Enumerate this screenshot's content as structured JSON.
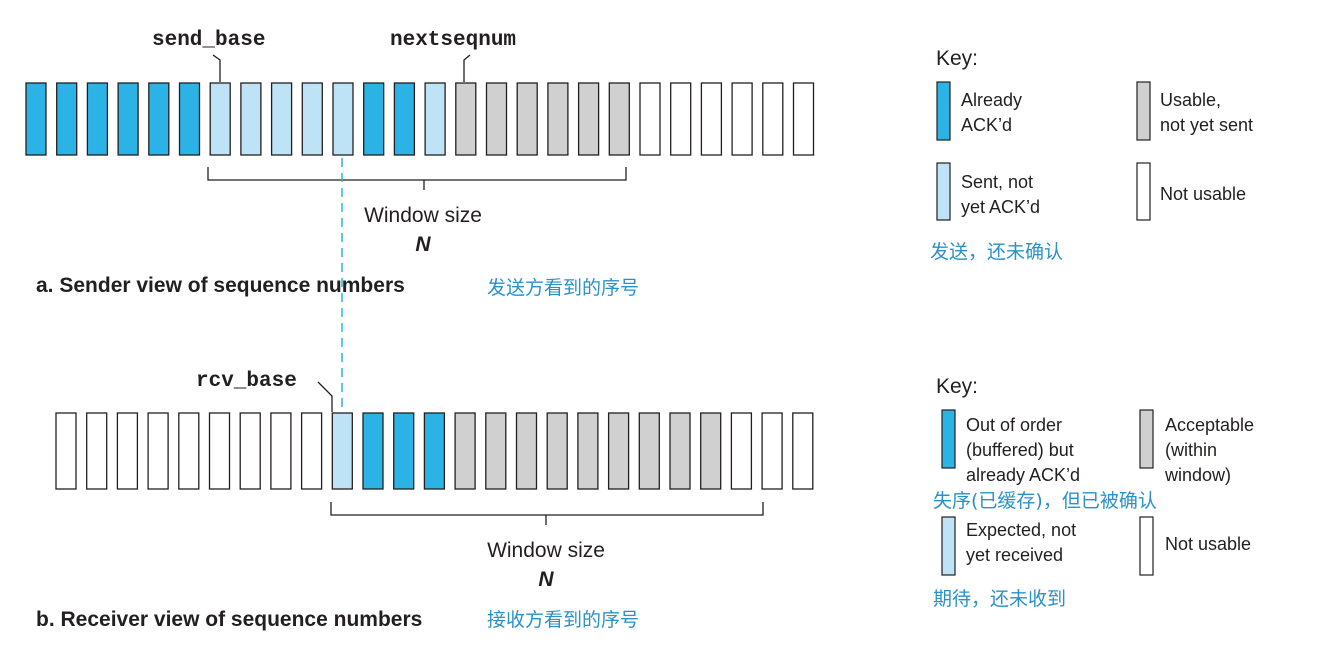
{
  "colors": {
    "acked": "#2bb3e6",
    "sent_not_acked": "#bfe3f6",
    "usable": "#d0d0d1",
    "not_usable": "#ffffff",
    "outline": "#231f20",
    "annotation": "#2a92c8",
    "dashed_line": "#2bb3e6"
  },
  "sender": {
    "label_send_base": "send_base",
    "label_nextseqnum": "nextseqnum",
    "window_label": "Window size",
    "window_n": "N",
    "caption": "a. Sender view of sequence numbers",
    "caption_cn": "发送方看到的序号",
    "cells": [
      "acked",
      "acked",
      "acked",
      "acked",
      "acked",
      "acked",
      "sent",
      "sent",
      "sent",
      "sent",
      "sent",
      "acked",
      "acked",
      "sent",
      "usable",
      "usable",
      "usable",
      "usable",
      "usable",
      "usable",
      "none",
      "none",
      "none",
      "none",
      "none",
      "none"
    ]
  },
  "receiver": {
    "label_rcv_base": "rcv_base",
    "window_label": "Window size",
    "window_n": "N",
    "caption": "b. Receiver view of sequence numbers",
    "caption_cn": "接收方看到的序号",
    "cells": [
      "none",
      "none",
      "none",
      "none",
      "none",
      "none",
      "none",
      "none",
      "none",
      "expected",
      "ooo",
      "ooo",
      "ooo",
      "acceptable",
      "acceptable",
      "acceptable",
      "acceptable",
      "acceptable",
      "acceptable",
      "acceptable",
      "acceptable",
      "acceptable",
      "none",
      "none",
      "none"
    ]
  },
  "sender_key": {
    "title": "Key:",
    "items": {
      "acked": [
        "Already",
        "ACK’d"
      ],
      "usable": [
        "Usable,",
        "not yet sent"
      ],
      "sent": [
        "Sent, not",
        "yet ACK’d"
      ],
      "not_usable": [
        "Not usable"
      ]
    },
    "annotation_cn": "发送，还未确认"
  },
  "receiver_key": {
    "title": "Key:",
    "items": {
      "ooo": [
        "Out of order",
        "(buffered) but",
        "already ACK’d"
      ],
      "acceptable": [
        "Acceptable",
        "(within",
        "window)"
      ],
      "expected": [
        "Expected, not",
        "yet received"
      ],
      "not_usable": [
        "Not usable"
      ]
    },
    "annotation_ooo_cn": "失序(已缓存)，但已被确认",
    "annotation_expected_cn": "期待，还未收到"
  }
}
